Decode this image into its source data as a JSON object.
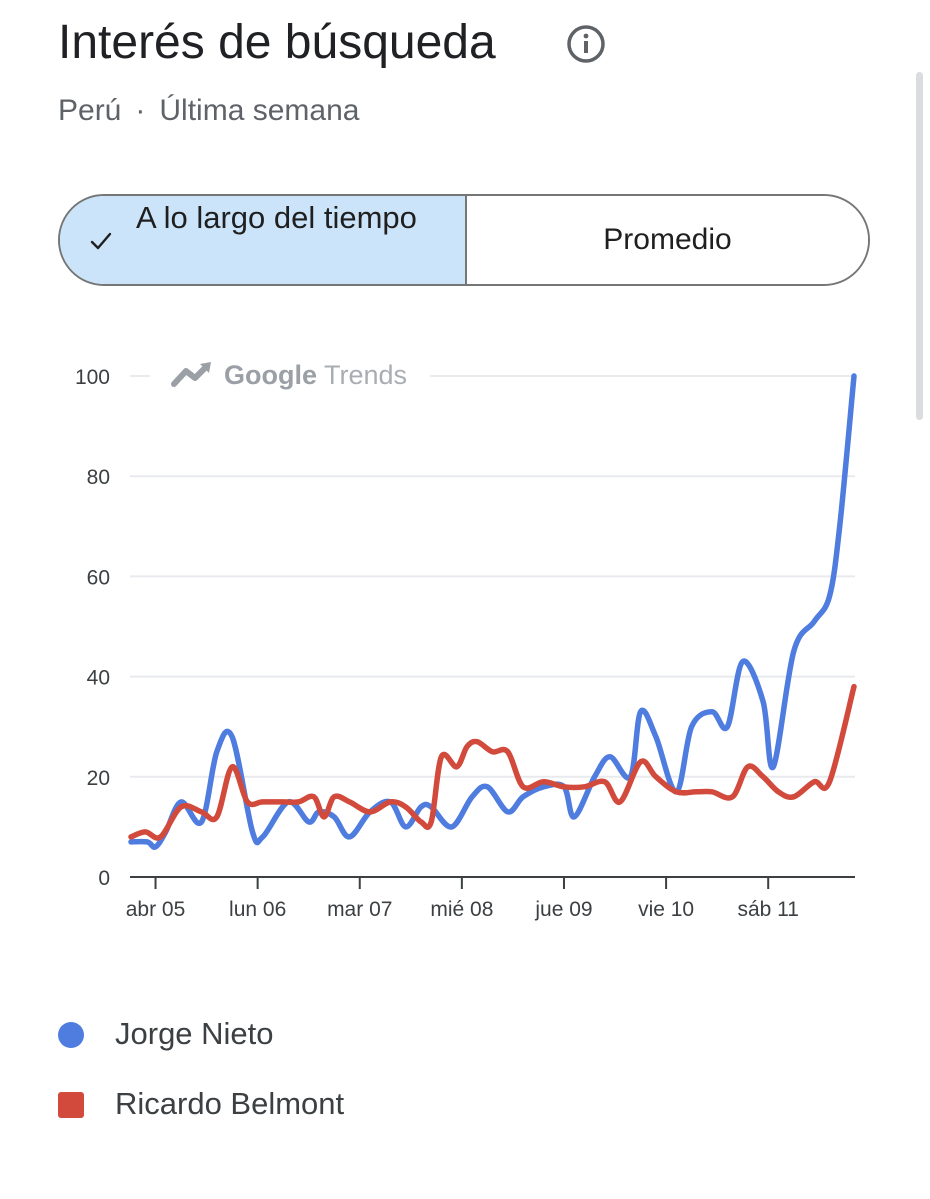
{
  "header": {
    "title": "Interés de búsqueda",
    "region": "Perú",
    "separator": "·",
    "period": "Última semana"
  },
  "toggle": {
    "active_label": "A lo largo del tiempo",
    "inactive_label": "Promedio",
    "active_color": "#cce4fa"
  },
  "watermark": {
    "google": "Google",
    "trends": "Trends"
  },
  "chart_data": {
    "type": "line",
    "ylim": [
      0,
      100
    ],
    "yticks": [
      0,
      20,
      40,
      60,
      80,
      100
    ],
    "xlim": [
      -0.25,
      6.85
    ],
    "xticks": [
      {
        "label": "abr 05",
        "x": 0
      },
      {
        "label": "lun 06",
        "x": 1
      },
      {
        "label": "mar 07",
        "x": 2
      },
      {
        "label": "mié 08",
        "x": 3
      },
      {
        "label": "jue 09",
        "x": 4
      },
      {
        "label": "vie 10",
        "x": 5
      },
      {
        "label": "sáb 11",
        "x": 6
      }
    ],
    "grid": true,
    "legend_position": "bottom",
    "series": [
      {
        "name": "Jorge Nieto",
        "color": "#4f7cdf",
        "x": [
          -0.24,
          -0.08,
          0.0,
          0.1,
          0.25,
          0.45,
          0.6,
          0.75,
          0.95,
          1.05,
          1.3,
          1.5,
          1.6,
          1.75,
          1.9,
          2.1,
          2.3,
          2.45,
          2.6,
          2.7,
          2.9,
          3.1,
          3.25,
          3.45,
          3.6,
          3.8,
          4.0,
          4.1,
          4.3,
          4.45,
          4.65,
          4.75,
          4.9,
          5.1,
          5.25,
          5.45,
          5.6,
          5.75,
          5.95,
          6.05,
          6.25,
          6.45,
          6.6,
          6.7,
          6.84
        ],
        "values": [
          7,
          7,
          6,
          9,
          15,
          11,
          25,
          28,
          9,
          8,
          15,
          11,
          13,
          12,
          8,
          13,
          15,
          10,
          14,
          14,
          10,
          16,
          18,
          13,
          16,
          18,
          18,
          12,
          20,
          24,
          20,
          33,
          28,
          17,
          30,
          33,
          30,
          43,
          35,
          22,
          45,
          51,
          56,
          70,
          100
        ]
      },
      {
        "name": "Ricardo Belmont",
        "color": "#d24a3c",
        "x": [
          -0.24,
          -0.1,
          0.05,
          0.25,
          0.45,
          0.6,
          0.75,
          0.9,
          1.05,
          1.25,
          1.4,
          1.55,
          1.65,
          1.75,
          1.9,
          2.1,
          2.3,
          2.45,
          2.6,
          2.7,
          2.8,
          2.95,
          3.05,
          3.15,
          3.3,
          3.45,
          3.6,
          3.8,
          4.0,
          4.2,
          4.4,
          4.55,
          4.75,
          4.9,
          5.1,
          5.3,
          5.45,
          5.65,
          5.8,
          5.95,
          6.1,
          6.25,
          6.45,
          6.6,
          6.84
        ],
        "values": [
          8,
          9,
          8,
          14,
          13,
          12,
          22,
          15,
          15,
          15,
          15,
          16,
          12,
          16,
          15,
          13,
          15,
          14,
          11,
          11,
          24,
          22,
          26,
          27,
          25,
          25,
          18,
          19,
          18,
          18,
          19,
          15,
          23,
          20,
          17,
          17,
          17,
          16,
          22,
          20,
          17,
          16,
          19,
          19,
          38
        ]
      }
    ]
  }
}
